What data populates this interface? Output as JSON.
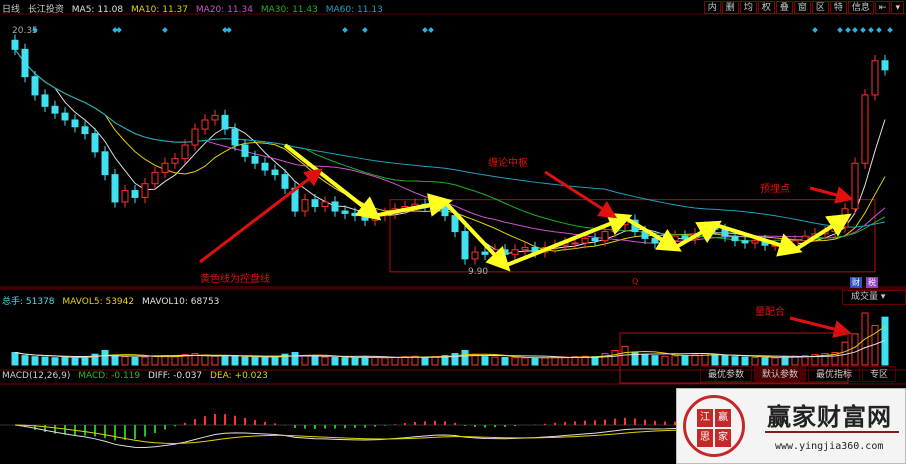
{
  "header": {
    "period": "日线",
    "stock": "长江投资",
    "ma": [
      {
        "label": "MA5: 11.08",
        "color": "#e0e0e0"
      },
      {
        "label": "MA10: 11.37",
        "color": "#e6d200"
      },
      {
        "label": "MA20: 11.34",
        "color": "#d050d0"
      },
      {
        "label": "MA30: 11.43",
        "color": "#20b020"
      },
      {
        "label": "MA60: 11.13",
        "color": "#20a0c0"
      }
    ]
  },
  "toolbar": [
    "内",
    "删",
    "均",
    "权",
    "叠",
    "窗",
    "区",
    "特",
    "信息",
    "⇤",
    "▾"
  ],
  "volume_header": {
    "total": "总手: 51378",
    "mavol5": "MAVOL5: 53942",
    "mavol10": "MAVOL10: 68753"
  },
  "macd_header": {
    "name": "MACD(12,26,9)",
    "macd": "MACD: -0.119",
    "diff": "DIFF: -0.037",
    "dea": "DEA: +0.023"
  },
  "indicator_select": "成交量 ▾",
  "tabs": [
    {
      "label": "最优参数",
      "active": false
    },
    {
      "label": "默认参数",
      "active": true
    },
    {
      "label": "最优指标",
      "active": false
    },
    {
      "label": "专区",
      "active": false
    }
  ],
  "badges": {
    "q": "Q",
    "cai": "财",
    "shui": "税"
  },
  "annotations": {
    "control_line": "黄色线为控盘线",
    "zhongshu": "缠论中枢",
    "preset_point": "预埋点",
    "volume_match": "量配合"
  },
  "logo": {
    "seal": [
      "江",
      "赢",
      "思",
      "家"
    ],
    "title": "赢家财富网",
    "url": "www.yingjia360.com"
  },
  "colors": {
    "up": "#ff3030",
    "down": "#40e0f0",
    "control_line": "#ffff20",
    "annotation": "#e01010"
  },
  "chart_data": {
    "type": "candlestick",
    "y_max_label": "20.35",
    "y_min_label": "9.90",
    "ylim": [
      9.9,
      20.35
    ],
    "closes": [
      19.5,
      18.3,
      17.5,
      17.0,
      16.7,
      16.4,
      16.1,
      15.8,
      15.0,
      14.0,
      12.8,
      13.3,
      13.0,
      13.6,
      14.1,
      14.5,
      14.7,
      15.3,
      16.0,
      16.4,
      16.6,
      16.0,
      15.3,
      14.8,
      14.5,
      14.2,
      14.0,
      13.4,
      12.4,
      12.9,
      12.6,
      12.8,
      12.4,
      12.3,
      12.2,
      12.0,
      12.2,
      12.3,
      12.5,
      12.6,
      12.7,
      12.6,
      12.7,
      12.2,
      11.5,
      10.3,
      10.6,
      10.5,
      10.7,
      10.5,
      10.7,
      10.8,
      10.6,
      10.8,
      10.9,
      11.0,
      11.0,
      11.2,
      11.1,
      11.5,
      11.8,
      12.0,
      11.5,
      11.2,
      11.0,
      11.1,
      11.3,
      11.2,
      11.4,
      11.7,
      11.6,
      11.3,
      11.1,
      11.0,
      11.1,
      10.9,
      10.9,
      10.8,
      11.1,
      11.3,
      11.4,
      11.5,
      11.7,
      12.5,
      14.5,
      17.5,
      19.0,
      18.6
    ],
    "volumes": [
      60000,
      45000,
      40000,
      38000,
      35000,
      36000,
      34000,
      40000,
      52000,
      70000,
      48000,
      40000,
      36000,
      38000,
      42000,
      45000,
      40000,
      50000,
      55000,
      48000,
      42000,
      40000,
      44000,
      38000,
      36000,
      35000,
      40000,
      52000,
      60000,
      45000,
      40000,
      38000,
      36000,
      35000,
      34000,
      38000,
      36000,
      35000,
      37000,
      40000,
      42000,
      38000,
      40000,
      45000,
      55000,
      70000,
      48000,
      40000,
      38000,
      36000,
      35000,
      34000,
      33000,
      35000,
      36000,
      38000,
      40000,
      42000,
      40000,
      55000,
      70000,
      90000,
      60000,
      50000,
      45000,
      42000,
      44000,
      46000,
      48000,
      55000,
      50000,
      45000,
      40000,
      38000,
      36000,
      35000,
      34000,
      40000,
      42000,
      45000,
      50000,
      55000,
      60000,
      110000,
      150000,
      250000,
      190000,
      230000
    ],
    "ma_periods": [
      5,
      10,
      20,
      30,
      60
    ],
    "macd_params": [
      12,
      26,
      9
    ],
    "control_line": [
      [
        27,
        15.3
      ],
      [
        36,
        12.2
      ],
      [
        43,
        12.8
      ],
      [
        49,
        10.0
      ],
      [
        61,
        12.1
      ],
      [
        66,
        10.8
      ],
      [
        70,
        11.8
      ],
      [
        78,
        10.7
      ],
      [
        83,
        12.1
      ]
    ],
    "zhongshu_box": {
      "from_index": 38,
      "to_index": 86,
      "high": 12.9,
      "low": 9.95
    },
    "signal_markers": [
      2,
      10,
      10.4,
      15,
      21,
      21.4,
      33,
      35,
      41,
      41.6,
      80,
      82.5,
      83.3,
      84,
      84.8,
      85.6,
      86.4,
      87.5
    ]
  }
}
